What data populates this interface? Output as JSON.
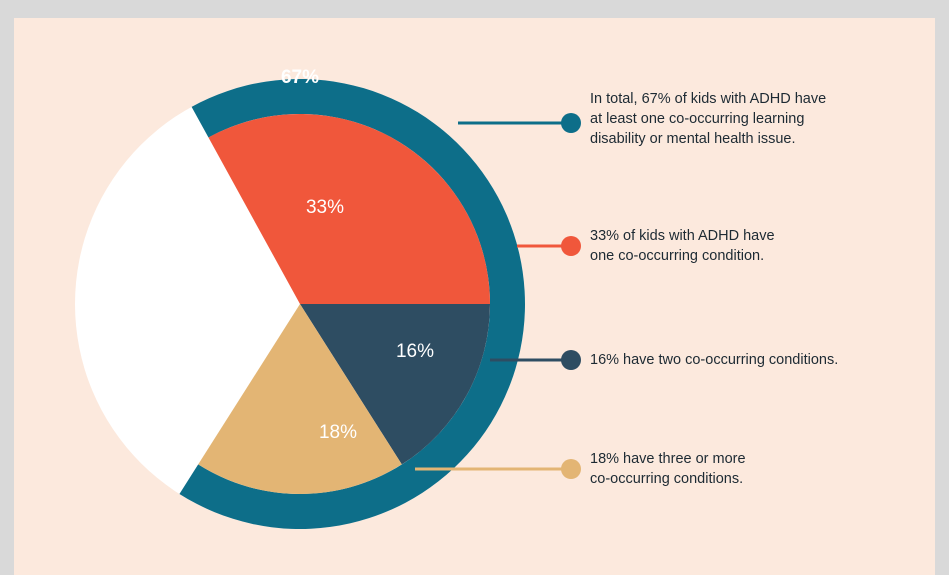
{
  "chart_data": {
    "type": "pie",
    "total": {
      "value": 67,
      "label": "67%",
      "color": "#0d6e89"
    },
    "categories": [
      null,
      null,
      null
    ],
    "values": [
      33,
      16,
      18
    ],
    "value_labels": [
      "33%",
      "16%",
      "18%"
    ],
    "colors": [
      "#f0573b",
      "#2e4d62",
      "#e3b574"
    ],
    "annotations": [
      [
        "In total, 67% of kids with ADHD have",
        "at least one co-occurring learning",
        "disability or mental health issue."
      ],
      [
        "33% of kids with ADHD have",
        "one co-occurring condition."
      ],
      [
        "16% have two co-occurring conditions."
      ],
      [
        "18% have three or more",
        "co-occurring conditions."
      ]
    ]
  }
}
